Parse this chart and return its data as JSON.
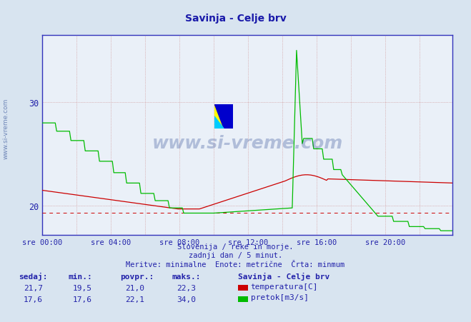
{
  "title": "Savinja - Celje brv",
  "title_color": "#1a1aaa",
  "bg_color": "#d8e4f0",
  "plot_bg_color": "#eaf0f8",
  "grid_color": "#cc8888",
  "axis_color": "#3333bb",
  "tick_color": "#2222aa",
  "xtick_labels": [
    "sre 00:00",
    "sre 04:00",
    "sre 08:00",
    "sre 12:00",
    "sre 16:00",
    "sre 20:00"
  ],
  "xtick_positions": [
    0,
    48,
    96,
    144,
    192,
    240
  ],
  "yticks": [
    20,
    30
  ],
  "ylim_bottom": 17.2,
  "ylim_top": 36.5,
  "xlim_left": 0,
  "xlim_right": 287,
  "min_line_value": 19.3,
  "footer_color": "#2222aa",
  "table_headers": [
    "sedaj:",
    "min.:",
    "povpr.:",
    "maks.:"
  ],
  "table_row1": [
    "21,7",
    "19,5",
    "21,0",
    "22,3"
  ],
  "table_row2": [
    "17,6",
    "17,6",
    "22,1",
    "34,0"
  ],
  "legend_title": "Savinja - Celje brv",
  "legend_labels": [
    "temperatura[C]",
    "pretok[m3/s]"
  ],
  "legend_colors": [
    "#cc0000",
    "#00bb00"
  ],
  "temp_color": "#cc0000",
  "flow_color": "#00bb00",
  "watermark_color": "#1a3a8a"
}
